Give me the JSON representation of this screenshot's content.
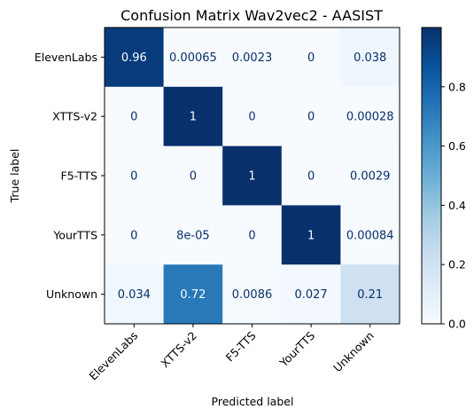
{
  "chart_data": {
    "type": "heatmap",
    "title": "Confusion Matrix Wav2vec2 - AASIST",
    "xlabel": "Predicted label",
    "ylabel": "True label",
    "x_categories": [
      "ElevenLabs",
      "XTTS-v2",
      "F5-TTS",
      "YourTTS",
      "Unknown"
    ],
    "y_categories": [
      "ElevenLabs",
      "XTTS-v2",
      "F5-TTS",
      "YourTTS",
      "Unknown"
    ],
    "values": [
      [
        0.96,
        0.00065,
        0.0023,
        0,
        0.038
      ],
      [
        0,
        1,
        0,
        0,
        0.00028
      ],
      [
        0,
        0,
        1,
        0,
        0.0029
      ],
      [
        0,
        8e-05,
        0,
        1,
        0.00084
      ],
      [
        0.034,
        0.72,
        0.0086,
        0.027,
        0.21
      ]
    ],
    "cell_labels": [
      [
        "0.96",
        "0.00065",
        "0.0023",
        "0",
        "0.038"
      ],
      [
        "0",
        "1",
        "0",
        "0",
        "0.00028"
      ],
      [
        "0",
        "0",
        "1",
        "0",
        "0.0029"
      ],
      [
        "0",
        "8e-05",
        "0",
        "1",
        "0.00084"
      ],
      [
        "0.034",
        "0.72",
        "0.0086",
        "0.027",
        "0.21"
      ]
    ],
    "colormap": "Blues",
    "colorbar": {
      "range": [
        0,
        1
      ],
      "ticks": [
        0.0,
        0.2,
        0.4,
        0.6,
        0.8
      ],
      "tick_labels": [
        "0.0",
        "0.2",
        "0.4",
        "0.6",
        "0.8"
      ]
    },
    "grid": false,
    "x_tick_rotation_deg": 45
  }
}
